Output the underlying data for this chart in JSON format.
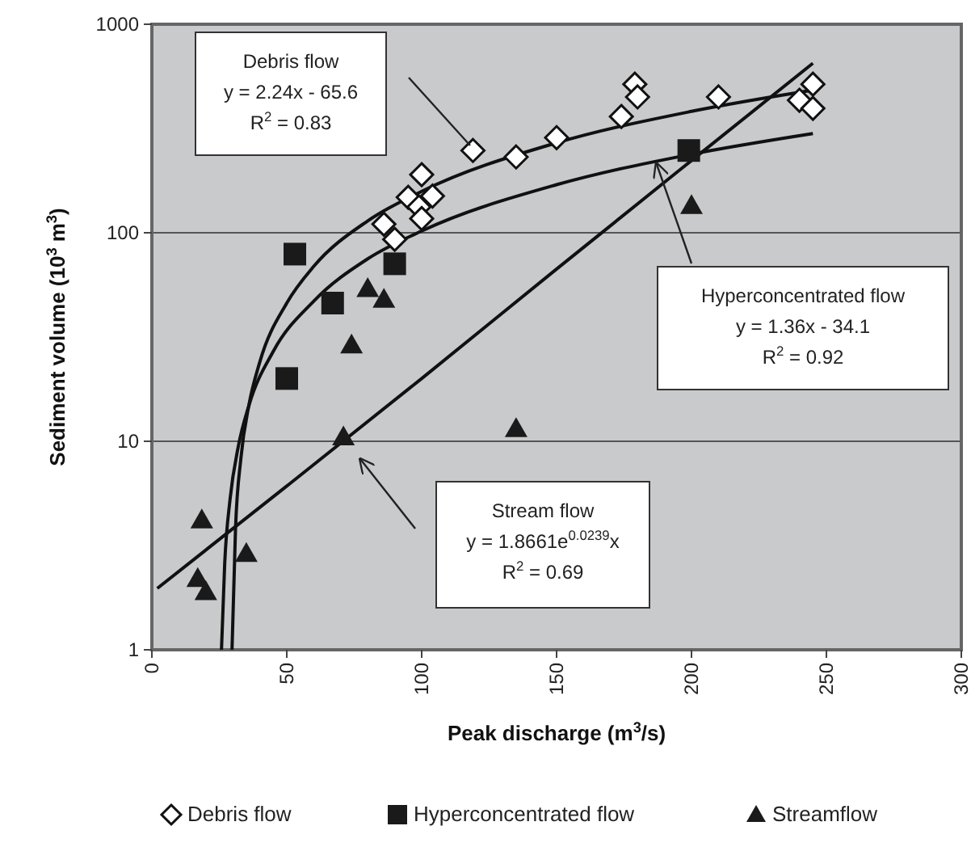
{
  "chart_data": {
    "type": "scatter",
    "xlabel": "Peak discharge (m$^{3}$/s)",
    "ylabel": "Sediment volume (10$^{3}$ m$^{3}$)",
    "xlim": [
      0,
      300
    ],
    "xticks": [
      0,
      50,
      100,
      150,
      200,
      250,
      300
    ],
    "ylim": [
      1,
      1000
    ],
    "yticks": [
      1,
      10,
      100,
      1000
    ],
    "log": "y",
    "grid": "y",
    "legend": "bottom",
    "series": [
      {
        "name": "Debris flow",
        "marker": "diamond",
        "color": "#ffffff",
        "x": [
          119,
          135,
          150,
          100,
          95,
          104,
          99,
          100,
          86,
          90,
          179,
          180,
          174,
          210,
          245,
          240,
          245
        ],
        "values": [
          248,
          231,
          286,
          190,
          148,
          150,
          133,
          117,
          110,
          93,
          516,
          448,
          361,
          448,
          516,
          432,
          395
        ]
      },
      {
        "name": "Hyperconcentrated flow",
        "marker": "square",
        "color": "#1a1a1a",
        "x": [
          199,
          53,
          90,
          67,
          50
        ],
        "values": [
          248,
          79,
          71,
          46,
          20
        ]
      },
      {
        "name": "Streamflow",
        "marker": "triangle",
        "color": "#1a1a1a",
        "x": [
          80,
          86,
          74,
          200,
          71,
          135,
          18.5,
          35,
          17,
          20
        ],
        "values": [
          54,
          48,
          29,
          135,
          10.5,
          11.5,
          4.2,
          2.9,
          2.2,
          1.9
        ]
      },
      {
        "type": "line",
        "color": "#111111",
        "x": [
          29.7,
          31,
          33,
          36,
          40,
          50,
          60,
          80,
          100,
          150,
          200,
          245
        ],
        "values": [
          1,
          3.8,
          8.3,
          15,
          24,
          46,
          69,
          114,
          158,
          270,
          382,
          483
        ]
      },
      {
        "type": "line",
        "color": "#111111",
        "x": [
          25.8,
          27,
          29,
          32,
          36,
          45,
          60,
          80,
          100,
          150,
          200,
          245
        ],
        "values": [
          1,
          2.6,
          5.3,
          9.4,
          14.9,
          27,
          47,
          75,
          102,
          170,
          238,
          299
        ]
      },
      {
        "type": "line",
        "color": "#111111",
        "x": [
          2,
          50,
          100,
          150,
          200,
          245
        ],
        "values": [
          1.97,
          6.1,
          20,
          67,
          222,
          650
        ]
      }
    ],
    "annotations": [
      "Debris flow\ny = 2.24x - 65.6\nR$^{2}$ = 0.83",
      {
        "text": "Hyperconcentrated flow\ny = 1.36x - 34.1\nR$^{2}$ = 0.92",
        "x": 187,
        "y": 215
      },
      "Stream flow\ny = 1.8661e$^{0.0239}$x\nR$^{2}$ = 0.69"
    ]
  }
}
